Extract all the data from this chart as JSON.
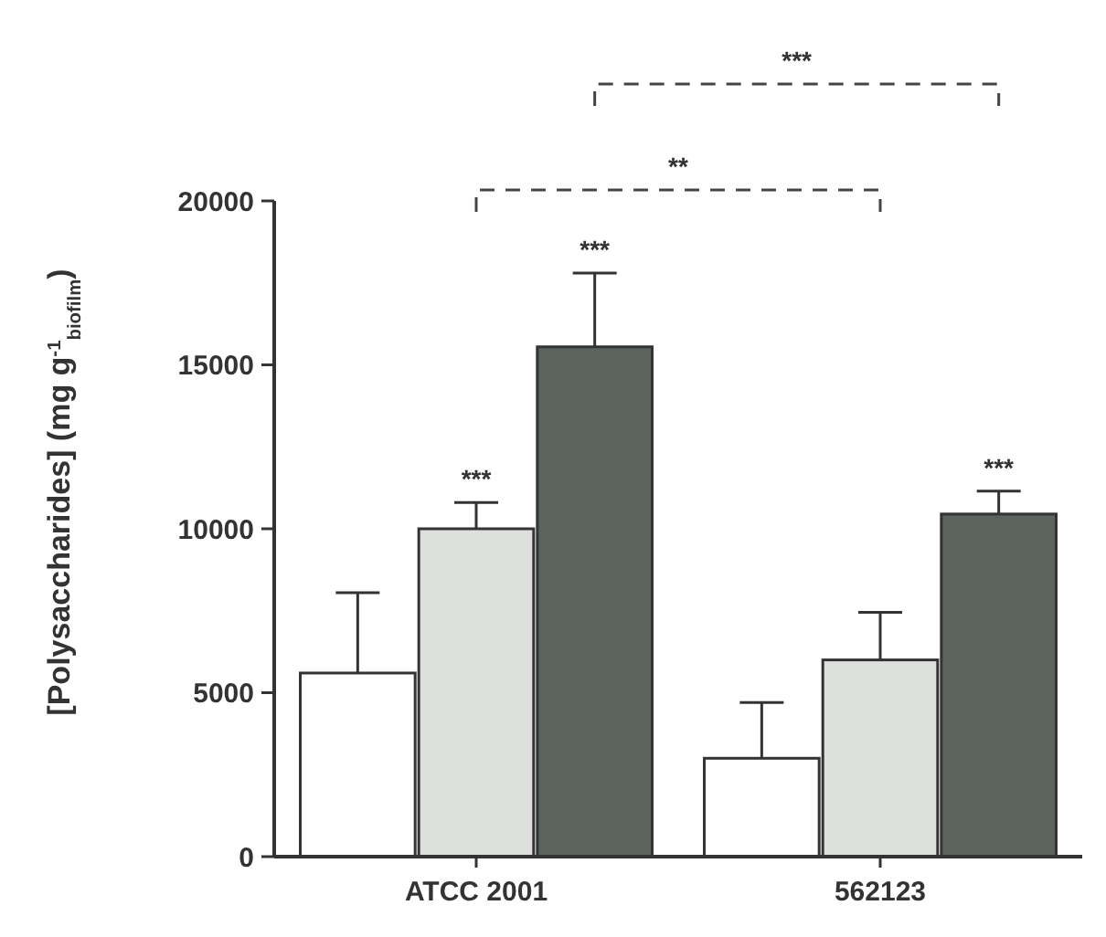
{
  "chart_data": {
    "type": "bar",
    "ylabel": "[Polysaccharides] (mg g$^{-1}$$_{biofilm}$)",
    "categories": [
      "ATCC 2001",
      "562123"
    ],
    "series": [
      {
        "color": "#ffffff",
        "values": [
          5600,
          3000
        ],
        "errors": [
          [
            5600,
            8050
          ],
          [
            3000,
            4700
          ]
        ]
      },
      {
        "color": "#dde0dc",
        "values": [
          10000,
          6000
        ],
        "errors": [
          [
            10000,
            10800
          ],
          [
            6000,
            7450
          ]
        ]
      },
      {
        "color": "#5c625d",
        "values": [
          15550,
          10450
        ],
        "errors": [
          [
            15550,
            17800
          ],
          [
            10450,
            11150
          ]
        ]
      }
    ],
    "ylim": [
      0,
      20000
    ],
    "yticks": [
      0,
      5000,
      10000,
      15000,
      20000
    ],
    "grid": false,
    "annotations": [
      "***",
      "***",
      "***",
      "**",
      "***"
    ]
  }
}
